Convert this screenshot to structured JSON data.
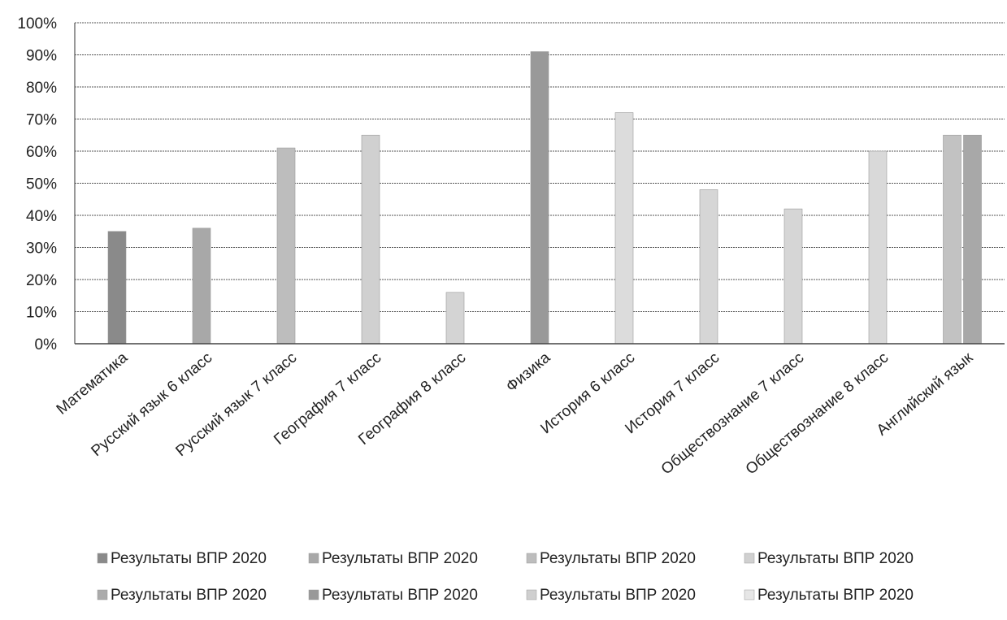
{
  "chart_data": {
    "type": "bar",
    "categories": [
      "Математика",
      "Русский язык 6 класс",
      "Русский язык 7 класс",
      "География 7 класс",
      "География 8 класс",
      "Физика",
      "История 6 класс",
      "История 7 класс",
      "Обществознание 7 класс",
      "Обществознание 8 класс",
      "Английский язык"
    ],
    "y_ticks": [
      "0%",
      "10%",
      "20%",
      "30%",
      "40%",
      "50%",
      "60%",
      "70%",
      "80%",
      "90%",
      "100%"
    ],
    "ylim": [
      0,
      100
    ],
    "grid": true,
    "legend_position": "bottom",
    "legend_entries": [
      "Результаты ВПР 2020",
      "Результаты ВПР 2020",
      "Результаты ВПР 2020",
      "Результаты ВПР 2020",
      "Результаты ВПР 2020",
      "Результаты ВПР 2020",
      "Результаты ВПР 2020",
      "Результаты ВПР 2020"
    ],
    "legend_colors": [
      "#8a8a8a",
      "#a8a8a8",
      "#bdbdbd",
      "#d0d0d0",
      "#ababab",
      "#999999",
      "#cfcfcf",
      "#e6e6e6"
    ],
    "bars": [
      {
        "category": 0,
        "value": 35,
        "color": "#8a8a8a"
      },
      {
        "category": 1,
        "value": 36,
        "color": "#a8a8a8"
      },
      {
        "category": 2,
        "value": 61,
        "color": "#bdbdbd"
      },
      {
        "category": 3,
        "value": 65,
        "color": "#d0d0d0"
      },
      {
        "category": 4,
        "value": 16,
        "color": "#d4d4d4"
      },
      {
        "category": 5,
        "value": 91,
        "color": "#999999"
      },
      {
        "category": 6,
        "value": 72,
        "color": "#dcdcdc"
      },
      {
        "category": 7,
        "value": 48,
        "color": "#d6d6d6"
      },
      {
        "category": 8,
        "value": 42,
        "color": "#d6d6d6"
      },
      {
        "category": 9,
        "value": 60,
        "color": "#d9d9d9"
      },
      {
        "category": 10,
        "value": 65,
        "color": "#c2c2c2"
      },
      {
        "category": 10,
        "value": 65,
        "color": "#a8a8a8"
      }
    ]
  }
}
